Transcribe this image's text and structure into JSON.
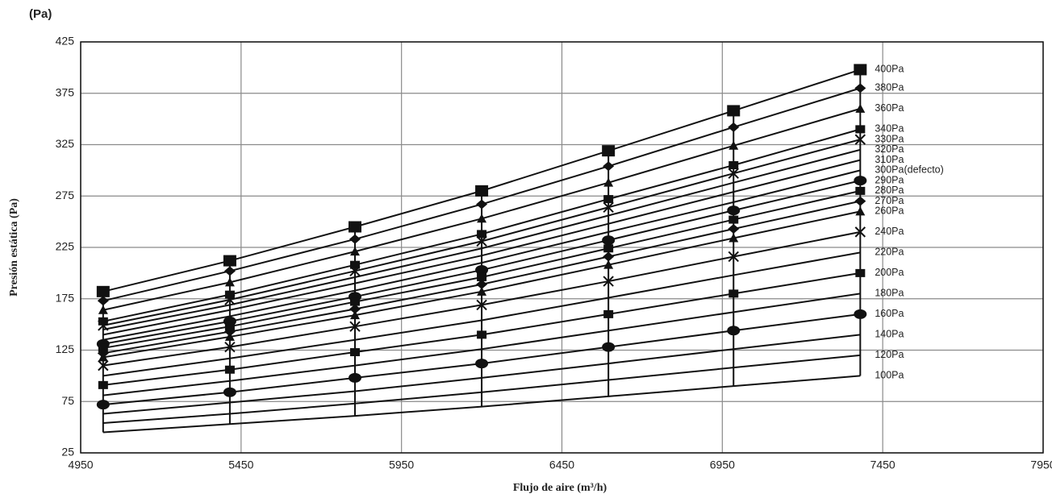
{
  "chart_data": {
    "type": "line",
    "unit_label": "(Pa)",
    "y_label": "Presión estática (Pa)",
    "x_label": "Flujo de aire (m³/h)",
    "x": [
      5020,
      5415,
      5805,
      6200,
      6595,
      6985,
      7380
    ],
    "xlim": [
      4950,
      7950
    ],
    "xticks": [
      4950,
      5450,
      5950,
      6450,
      6950,
      7450,
      7950
    ],
    "ylim": [
      25,
      425
    ],
    "yticks": [
      25,
      75,
      125,
      175,
      225,
      275,
      325,
      375,
      425
    ],
    "grid": true,
    "series": [
      {
        "name": "400Pa",
        "color": "#111111",
        "marker": "big-square",
        "values": [
          182,
          212,
          245,
          280,
          319,
          358,
          398
        ]
      },
      {
        "name": "380Pa",
        "color": "#111111",
        "marker": "diamond",
        "values": [
          173,
          202,
          233,
          267,
          304,
          342,
          380
        ]
      },
      {
        "name": "360Pa",
        "color": "#111111",
        "marker": "triangle",
        "values": [
          164,
          191,
          221,
          253,
          288,
          324,
          360
        ]
      },
      {
        "name": "340Pa",
        "color": "#111111",
        "marker": "square",
        "values": [
          153,
          179,
          208,
          238,
          272,
          305,
          340
        ]
      },
      {
        "name": "330Pa",
        "color": "#111111",
        "marker": "x",
        "values": [
          149,
          174,
          202,
          231,
          264,
          297,
          330
        ]
      },
      {
        "name": "320Pa",
        "color": "#111111",
        "marker": "none",
        "values": [
          145,
          169,
          196,
          224,
          256,
          288,
          320
        ]
      },
      {
        "name": "310Pa",
        "color": "#111111",
        "marker": "none",
        "values": [
          140,
          164,
          190,
          217,
          248,
          279,
          310
        ]
      },
      {
        "name": "300Pa(defecto)",
        "color": "#111111",
        "marker": "none",
        "values": [
          135,
          158,
          183,
          210,
          240,
          269,
          300
        ]
      },
      {
        "name": "290Pa",
        "color": "#111111",
        "marker": "circle",
        "values": [
          131,
          153,
          177,
          203,
          232,
          261,
          290
        ]
      },
      {
        "name": "280Pa",
        "color": "#111111",
        "marker": "square",
        "values": [
          127,
          148,
          172,
          196,
          224,
          252,
          280
        ]
      },
      {
        "name": "270Pa",
        "color": "#111111",
        "marker": "diamond",
        "values": [
          122,
          143,
          165,
          189,
          216,
          243,
          270
        ]
      },
      {
        "name": "260Pa",
        "color": "#111111",
        "marker": "triangle",
        "values": [
          118,
          138,
          159,
          182,
          208,
          234,
          260
        ]
      },
      {
        "name": "240Pa",
        "color": "#111111",
        "marker": "x",
        "values": [
          110,
          128,
          148,
          169,
          192,
          216,
          240
        ]
      },
      {
        "name": "220Pa",
        "color": "#111111",
        "marker": "none",
        "values": [
          100,
          117,
          135,
          154,
          176,
          198,
          220
        ]
      },
      {
        "name": "200Pa",
        "color": "#111111",
        "marker": "square",
        "values": [
          91,
          106,
          123,
          140,
          160,
          180,
          200
        ]
      },
      {
        "name": "180Pa",
        "color": "#111111",
        "marker": "none",
        "values": [
          81,
          95,
          110,
          126,
          144,
          162,
          180
        ]
      },
      {
        "name": "160Pa",
        "color": "#111111",
        "marker": "circle",
        "values": [
          72,
          84,
          98,
          112,
          128,
          144,
          160
        ]
      },
      {
        "name": "140Pa",
        "color": "#111111",
        "marker": "none",
        "values": [
          63,
          74,
          85,
          98,
          112,
          126,
          140
        ]
      },
      {
        "name": "120Pa",
        "color": "#111111",
        "marker": "none",
        "values": [
          54,
          63,
          73,
          84,
          96,
          108,
          120
        ]
      },
      {
        "name": "100Pa",
        "color": "#111111",
        "marker": "none",
        "values": [
          45,
          53,
          61,
          70,
          80,
          90,
          100
        ]
      }
    ]
  }
}
